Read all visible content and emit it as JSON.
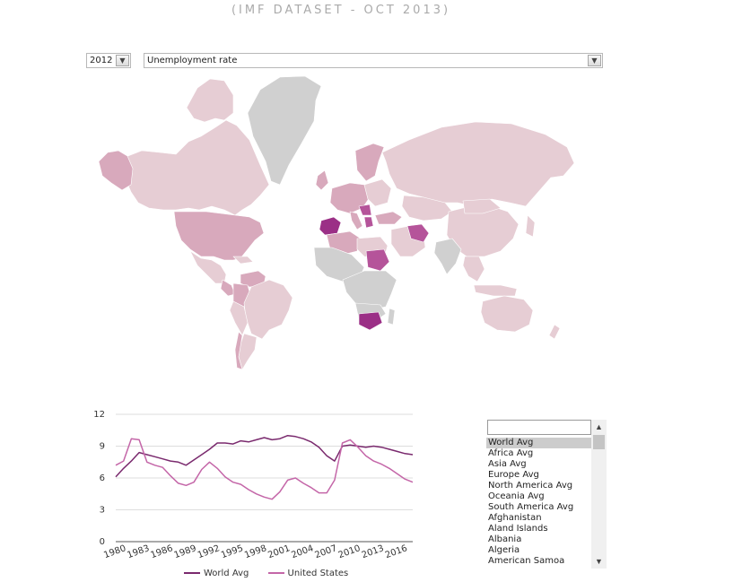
{
  "title": "(IMF DATASET - OCT 2013)",
  "year_select": {
    "value": "2012"
  },
  "indicator_select": {
    "value": "Unemployment rate"
  },
  "map": {
    "colors": {
      "no_data": "#d0d0d0",
      "low": "#e6cdd4",
      "mid": "#d8a9bc",
      "high": "#b5549a",
      "highest": "#9b2f86"
    }
  },
  "chart_data": {
    "type": "line",
    "x": [
      1980,
      1981,
      1982,
      1983,
      1984,
      1985,
      1986,
      1987,
      1988,
      1989,
      1990,
      1991,
      1992,
      1993,
      1994,
      1995,
      1996,
      1997,
      1998,
      1999,
      2000,
      2001,
      2002,
      2003,
      2004,
      2005,
      2006,
      2007,
      2008,
      2009,
      2010,
      2011,
      2012,
      2013,
      2014,
      2015,
      2016,
      2017,
      2018
    ],
    "x_ticks": [
      1980,
      1983,
      1986,
      1989,
      1992,
      1995,
      1998,
      2001,
      2004,
      2007,
      2010,
      2013,
      2016
    ],
    "y_ticks": [
      0,
      3,
      6,
      9,
      12
    ],
    "ylim": [
      0,
      12
    ],
    "series": [
      {
        "name": "World Avg",
        "color": "#7a2a6e",
        "values": [
          6.1,
          6.9,
          7.6,
          8.4,
          8.2,
          8.0,
          7.8,
          7.6,
          7.5,
          7.2,
          7.7,
          8.2,
          8.7,
          9.3,
          9.3,
          9.2,
          9.5,
          9.4,
          9.6,
          9.8,
          9.6,
          9.7,
          10.0,
          9.9,
          9.7,
          9.4,
          8.9,
          8.1,
          7.6,
          9.0,
          9.1,
          9.0,
          8.9,
          9.0,
          8.9,
          8.7,
          8.5,
          8.3,
          8.2
        ]
      },
      {
        "name": "United States",
        "color": "#c466a8",
        "values": [
          7.2,
          7.6,
          9.7,
          9.6,
          7.5,
          7.2,
          7.0,
          6.2,
          5.5,
          5.3,
          5.6,
          6.8,
          7.5,
          6.9,
          6.1,
          5.6,
          5.4,
          4.9,
          4.5,
          4.2,
          4.0,
          4.7,
          5.8,
          6.0,
          5.5,
          5.1,
          4.6,
          4.6,
          5.8,
          9.3,
          9.6,
          8.9,
          8.1,
          7.6,
          7.3,
          6.9,
          6.4,
          5.9,
          5.6
        ]
      }
    ]
  },
  "country_list": {
    "search_value": "",
    "selected": "World Avg",
    "items": [
      "World Avg",
      "Africa Avg",
      "Asia Avg",
      "Europe Avg",
      "North America Avg",
      "Oceania Avg",
      "South America Avg",
      "Afghanistan",
      "Aland Islands",
      "Albania",
      "Algeria",
      "American Samoa"
    ]
  },
  "scrollbar": {
    "up_icon": "chevron-up-icon",
    "down_icon": "chevron-down-icon"
  }
}
